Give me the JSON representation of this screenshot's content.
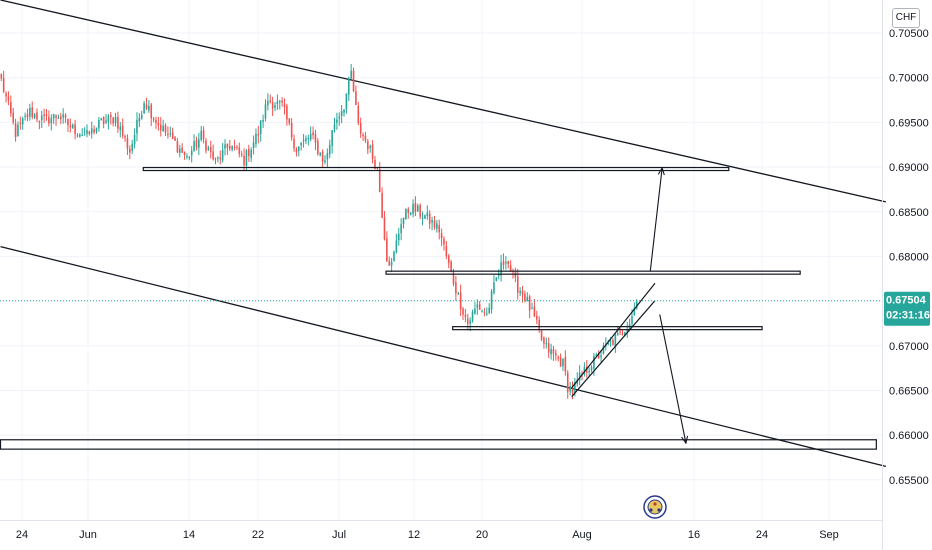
{
  "currency_label": "CHF",
  "colors": {
    "bull": "#26a69a",
    "bear": "#ef5350",
    "line": "#131722",
    "last_price": "#26a69a",
    "axis_border": "#e0e3eb"
  },
  "chart_data": {
    "type": "candlestick",
    "title": "",
    "y_unit": "CHF",
    "ylim": [
      0.6505,
      0.7087
    ],
    "y_ticks": [
      "0.65500",
      "0.66000",
      "0.66500",
      "0.67000",
      "0.67500",
      "0.68000",
      "0.68500",
      "0.69000",
      "0.69500",
      "0.70000",
      "0.70500"
    ],
    "x_ticks": [
      "24",
      "Jun",
      "14",
      "22",
      "Jul",
      "12",
      "20",
      "Aug",
      "16",
      "24",
      "Sep"
    ],
    "last_price": {
      "value": "0.67504",
      "countdown": "02:31:16"
    },
    "price_path": [
      {
        "bar": 0,
        "price": 0.6997
      },
      {
        "bar": 6,
        "price": 0.6938
      },
      {
        "bar": 12,
        "price": 0.6962
      },
      {
        "bar": 18,
        "price": 0.6952
      },
      {
        "bar": 24,
        "price": 0.6958
      },
      {
        "bar": 30,
        "price": 0.6943
      },
      {
        "bar": 36,
        "price": 0.6935
      },
      {
        "bar": 42,
        "price": 0.695
      },
      {
        "bar": 48,
        "price": 0.6955
      },
      {
        "bar": 54,
        "price": 0.6918
      },
      {
        "bar": 60,
        "price": 0.6975
      },
      {
        "bar": 66,
        "price": 0.6948
      },
      {
        "bar": 72,
        "price": 0.693
      },
      {
        "bar": 78,
        "price": 0.691
      },
      {
        "bar": 84,
        "price": 0.6935
      },
      {
        "bar": 90,
        "price": 0.6905
      },
      {
        "bar": 96,
        "price": 0.6925
      },
      {
        "bar": 102,
        "price": 0.6908
      },
      {
        "bar": 108,
        "price": 0.6938
      },
      {
        "bar": 112,
        "price": 0.6975
      },
      {
        "bar": 118,
        "price": 0.6968
      },
      {
        "bar": 124,
        "price": 0.692
      },
      {
        "bar": 130,
        "price": 0.6935
      },
      {
        "bar": 136,
        "price": 0.6905
      },
      {
        "bar": 140,
        "price": 0.695
      },
      {
        "bar": 144,
        "price": 0.697
      },
      {
        "bar": 147,
        "price": 0.7005
      },
      {
        "bar": 150,
        "price": 0.6945
      },
      {
        "bar": 154,
        "price": 0.6925
      },
      {
        "bar": 158,
        "price": 0.6898
      },
      {
        "bar": 162,
        "price": 0.68
      },
      {
        "bar": 164,
        "price": 0.679
      },
      {
        "bar": 168,
        "price": 0.684
      },
      {
        "bar": 172,
        "price": 0.6855
      },
      {
        "bar": 178,
        "price": 0.6845
      },
      {
        "bar": 184,
        "price": 0.683
      },
      {
        "bar": 188,
        "price": 0.679
      },
      {
        "bar": 192,
        "price": 0.6755
      },
      {
        "bar": 196,
        "price": 0.6725
      },
      {
        "bar": 200,
        "price": 0.6745
      },
      {
        "bar": 204,
        "price": 0.6735
      },
      {
        "bar": 208,
        "price": 0.6775
      },
      {
        "bar": 212,
        "price": 0.68
      },
      {
        "bar": 216,
        "price": 0.677
      },
      {
        "bar": 220,
        "price": 0.6755
      },
      {
        "bar": 224,
        "price": 0.673
      },
      {
        "bar": 228,
        "price": 0.67
      },
      {
        "bar": 232,
        "price": 0.669
      },
      {
        "bar": 236,
        "price": 0.668
      },
      {
        "bar": 238,
        "price": 0.6655
      },
      {
        "bar": 240,
        "price": 0.665
      },
      {
        "bar": 244,
        "price": 0.6668
      },
      {
        "bar": 248,
        "price": 0.668
      },
      {
        "bar": 252,
        "price": 0.6692
      },
      {
        "bar": 256,
        "price": 0.6703
      },
      {
        "bar": 260,
        "price": 0.6712
      },
      {
        "bar": 264,
        "price": 0.6728
      },
      {
        "bar": 267,
        "price": 0.675
      }
    ],
    "drawings": [
      {
        "kind": "trendline",
        "from": {
          "bar": 0,
          "price": 0.7087
        },
        "to": {
          "bar": 372,
          "price": 0.6861
        }
      },
      {
        "kind": "trendline",
        "from": {
          "bar": 0,
          "price": 0.6811
        },
        "to": {
          "bar": 372,
          "price": 0.6565
        }
      },
      {
        "kind": "horizontal_zone",
        "from_bar": 60,
        "to_bar": 306,
        "price_top": 0.68995,
        "price_bottom": 0.68965
      },
      {
        "kind": "horizontal_zone",
        "from_bar": 162,
        "to_bar": 336,
        "price_top": 0.67835,
        "price_bottom": 0.67805
      },
      {
        "kind": "horizontal_zone",
        "from_bar": 190,
        "to_bar": 320,
        "price_top": 0.67214,
        "price_bottom": 0.67184
      },
      {
        "kind": "horizontal_zone",
        "from_bar": 0,
        "to_bar": 368,
        "price_top": 0.65948,
        "price_bottom": 0.65843
      },
      {
        "kind": "channel_line",
        "from": {
          "bar": 240,
          "price": 0.6653
        },
        "to": {
          "bar": 275,
          "price": 0.677
        }
      },
      {
        "kind": "channel_line",
        "from": {
          "bar": 240,
          "price": 0.6643
        },
        "to": {
          "bar": 275,
          "price": 0.67505
        }
      },
      {
        "kind": "arrow",
        "from": {
          "bar": 273,
          "price": 0.6783
        },
        "to": {
          "bar": 278,
          "price": 0.6899
        }
      },
      {
        "kind": "arrow",
        "from": {
          "bar": 277,
          "price": 0.6735
        },
        "to": {
          "bar": 288,
          "price": 0.6591
        }
      }
    ]
  }
}
